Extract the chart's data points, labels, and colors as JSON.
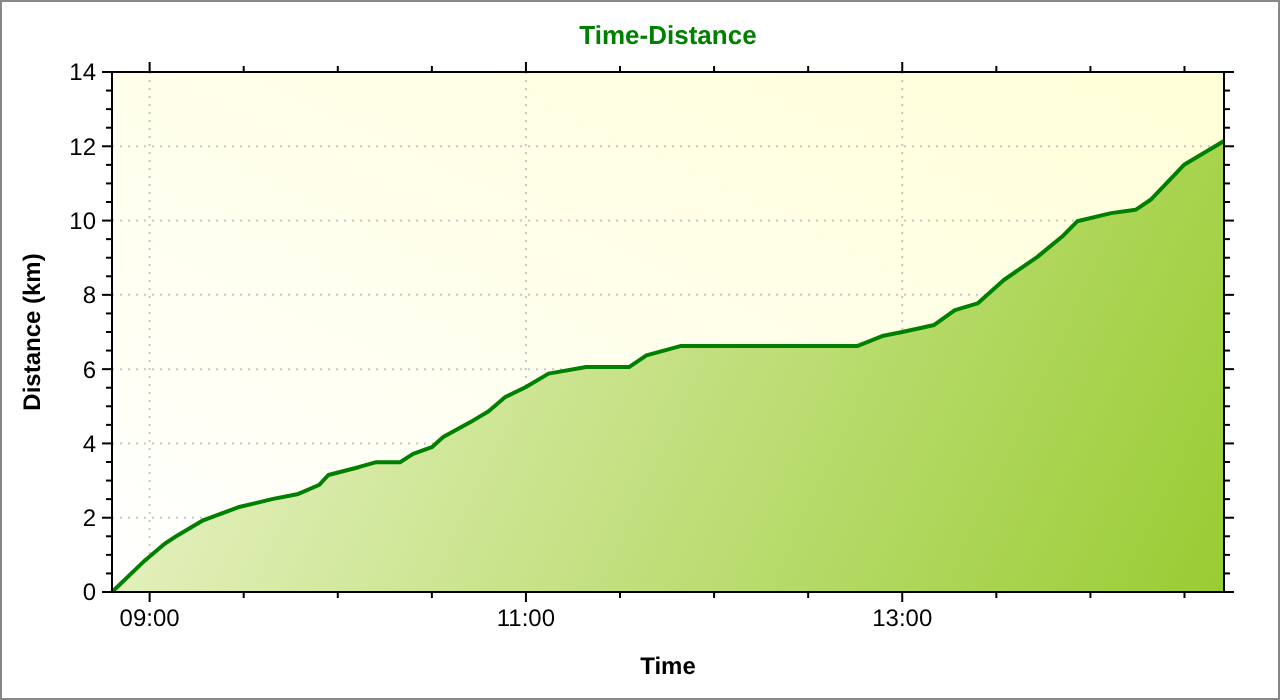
{
  "chart_data": {
    "type": "area",
    "title": "Time-Distance",
    "xlabel": "Time",
    "ylabel": "Distance (km)",
    "x": [
      8.8,
      8.975,
      9.08,
      9.15,
      9.28,
      9.47,
      9.65,
      9.79,
      9.9,
      9.95,
      10.11,
      10.2,
      10.33,
      10.4,
      10.5,
      10.56,
      10.72,
      10.8,
      10.89,
      11.0,
      11.12,
      11.32,
      11.55,
      11.64,
      11.82,
      12.76,
      12.9,
      13.0,
      13.17,
      13.28,
      13.4,
      13.54,
      13.72,
      13.85,
      13.93,
      14.11,
      14.24,
      14.32,
      14.5,
      14.71
    ],
    "series": [
      {
        "color": "#008000",
        "values": [
          0,
          0.85,
          1.3,
          1.53,
          1.92,
          2.28,
          2.5,
          2.64,
          2.88,
          3.15,
          3.36,
          3.49,
          3.49,
          3.72,
          3.9,
          4.17,
          4.62,
          4.86,
          5.25,
          5.52,
          5.88,
          6.06,
          6.06,
          6.37,
          6.62,
          6.62,
          6.9,
          7.0,
          7.19,
          7.59,
          7.77,
          8.4,
          9.03,
          9.57,
          9.98,
          10.2,
          10.29,
          10.56,
          11.51,
          12.14
        ]
      }
    ],
    "xlim": [
      8.8,
      14.71
    ],
    "xticks": [
      {
        "value": 9,
        "label": "09:00"
      },
      {
        "value": 9.5,
        "label": null
      },
      {
        "value": 10,
        "label": null
      },
      {
        "value": 10.5,
        "label": null
      },
      {
        "value": 11,
        "label": "11:00"
      },
      {
        "value": 11.5,
        "label": null
      },
      {
        "value": 12,
        "label": null
      },
      {
        "value": 12.5,
        "label": null
      },
      {
        "value": 13,
        "label": "13:00"
      },
      {
        "value": 13.5,
        "label": null
      },
      {
        "value": 14,
        "label": null
      },
      {
        "value": 14.5,
        "label": null
      }
    ],
    "ylim": [
      0,
      14
    ],
    "yticks": [
      0,
      {
        "value": 0.5,
        "label": null
      },
      {
        "value": 1,
        "label": null
      },
      {
        "value": 1.5,
        "label": null
      },
      2,
      {
        "value": 2.5,
        "label": null
      },
      {
        "value": 3,
        "label": null
      },
      {
        "value": 3.5,
        "label": null
      },
      4,
      {
        "value": 4.5,
        "label": null
      },
      {
        "value": 5,
        "label": null
      },
      {
        "value": 5.5,
        "label": null
      },
      6,
      {
        "value": 6.5,
        "label": null
      },
      {
        "value": 7,
        "label": null
      },
      {
        "value": 7.5,
        "label": null
      },
      8,
      {
        "value": 8.5,
        "label": null
      },
      {
        "value": 9,
        "label": null
      },
      {
        "value": 9.5,
        "label": null
      },
      10,
      {
        "value": 10.5,
        "label": null
      },
      {
        "value": 11,
        "label": null
      },
      {
        "value": 11.5,
        "label": null
      },
      12,
      {
        "value": 12.5,
        "label": null
      },
      {
        "value": 13,
        "label": null
      },
      {
        "value": 13.5,
        "label": null
      },
      14
    ],
    "grid": true
  }
}
